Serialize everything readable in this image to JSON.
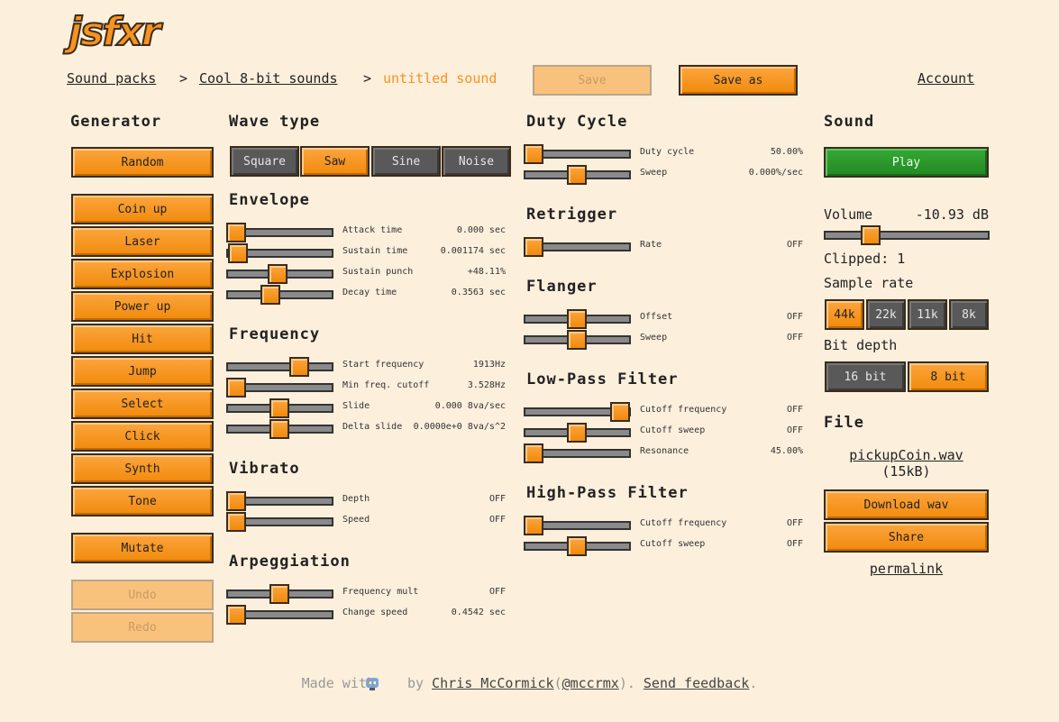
{
  "header": {
    "logo": "jsfxr",
    "breadcrumbs": [
      "Sound packs",
      "Cool 8-bit sounds",
      "untitled sound"
    ],
    "separators": [
      ">",
      ">"
    ],
    "save": "Save",
    "save_as": "Save as",
    "account": "Account"
  },
  "generator": {
    "title": "Generator",
    "random": "Random",
    "presets": [
      "Coin up",
      "Laser",
      "Explosion",
      "Power up",
      "Hit",
      "Jump",
      "Select",
      "Click",
      "Synth",
      "Tone"
    ],
    "mutate": "Mutate",
    "undo": "Undo",
    "redo": "Redo"
  },
  "wave_type": {
    "title": "Wave type",
    "options": [
      "Square",
      "Saw",
      "Sine",
      "Noise"
    ]
  },
  "columns": [
    [
      {
        "title": "Envelope",
        "sliders": [
          {
            "label": "Attack time",
            "value": "0.000 sec"
          },
          {
            "label": "Sustain time",
            "value": "0.001174 sec"
          },
          {
            "label": "Sustain punch",
            "value": "+48.11%"
          },
          {
            "label": "Decay time",
            "value": "0.3563 sec"
          }
        ]
      },
      {
        "title": "Frequency",
        "sliders": [
          {
            "label": "Start frequency",
            "value": "1913Hz"
          },
          {
            "label": "Min freq. cutoff",
            "value": "3.528Hz"
          },
          {
            "label": "Slide",
            "value": "0.000 8va/sec"
          },
          {
            "label": "Delta slide",
            "value": "0.0000e+0 8va/s^2"
          }
        ]
      },
      {
        "title": "Vibrato",
        "sliders": [
          {
            "label": "Depth",
            "value": "OFF"
          },
          {
            "label": "Speed",
            "value": "OFF"
          }
        ]
      },
      {
        "title": "Arpeggiation",
        "sliders": [
          {
            "label": "Frequency mult",
            "value": "OFF"
          },
          {
            "label": "Change speed",
            "value": "0.4542 sec"
          }
        ]
      }
    ],
    [
      {
        "title": "Duty Cycle",
        "sliders": [
          {
            "label": "Duty cycle",
            "value": "50.00%"
          },
          {
            "label": "Sweep",
            "value": "0.000%/sec"
          }
        ]
      },
      {
        "title": "Retrigger",
        "sliders": [
          {
            "label": "Rate",
            "value": "OFF"
          }
        ]
      },
      {
        "title": "Flanger",
        "sliders": [
          {
            "label": "Offset",
            "value": "OFF"
          },
          {
            "label": "Sweep",
            "value": "OFF"
          }
        ]
      },
      {
        "title": "Low-Pass Filter",
        "sliders": [
          {
            "label": "Cutoff frequency",
            "value": "OFF"
          },
          {
            "label": "Cutoff sweep",
            "value": "OFF"
          },
          {
            "label": "Resonance",
            "value": "45.00%"
          }
        ]
      },
      {
        "title": "High-Pass Filter",
        "sliders": [
          {
            "label": "Cutoff frequency",
            "value": "OFF"
          },
          {
            "label": "Cutoff sweep",
            "value": "OFF"
          }
        ]
      }
    ]
  ],
  "sound": {
    "title": "Sound",
    "play": "Play",
    "volume_label": "Volume",
    "volume_value": "-10.93 dB",
    "clipped": "Clipped: 1",
    "sample_rate": "Sample rate",
    "rates": [
      "44k",
      "22k",
      "11k",
      "8k"
    ],
    "bit_depth": "Bit depth",
    "bits": [
      "16 bit",
      "8 bit"
    ],
    "file": "File",
    "filename": "pickupCoin.wav",
    "size": "(15kB)",
    "download": "Download wav",
    "share": "Share",
    "permalink": "permalink"
  },
  "footer": {
    "made_with": "Made with",
    "by": "by",
    "author": "Chris McCormick",
    "open": "(",
    "handle": "@mccrmx",
    "close": ").",
    "feedback": "Send feedback",
    "end": "."
  }
}
